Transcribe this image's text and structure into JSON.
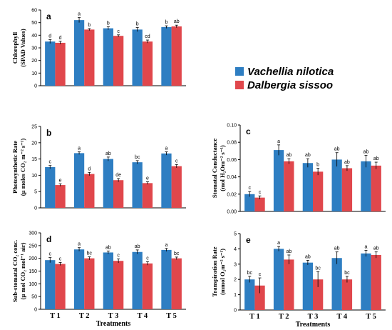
{
  "legend": {
    "items": [
      {
        "label": "Vachellia nilotica",
        "color": "#2e7ec2"
      },
      {
        "label": "Dalbergia sissoo",
        "color": "#e0474c"
      }
    ]
  },
  "chart_data": [
    {
      "type": "bar",
      "panel": "a",
      "categories": [
        "T 1",
        "T 2",
        "T 3",
        "T 4",
        "T 5"
      ],
      "ylabel_lines": [
        "Chlorophyll",
        "(SPAD Values)"
      ],
      "xlabel": "",
      "ylim": [
        0,
        60
      ],
      "yticks": [
        0,
        10,
        20,
        30,
        40,
        50,
        60
      ],
      "series": [
        {
          "name": "Vachellia nilotica",
          "values": [
            35.0,
            52.0,
            45.5,
            44.5,
            46.5
          ],
          "errors": [
            1.5,
            2.0,
            1.2,
            1.6,
            1.0
          ],
          "letters": [
            "d",
            "a",
            "b",
            "b",
            "b"
          ]
        },
        {
          "name": "Dalbergia sissoo",
          "values": [
            34.0,
            44.5,
            39.5,
            35.0,
            47.0
          ],
          "errors": [
            1.2,
            0.8,
            0.8,
            1.2,
            1.0
          ],
          "letters": [
            "d",
            "b",
            "c",
            "cd",
            "ab"
          ]
        }
      ]
    },
    {
      "type": "bar",
      "panel": "b",
      "categories": [
        "T 1",
        "T 2",
        "T 3",
        "T 4",
        "T 5"
      ],
      "ylabel_lines": [
        "Photosynthetic Rate",
        "(µ moles CO₂ m⁻² s⁻¹)"
      ],
      "xlabel": "",
      "ylim": [
        0,
        25
      ],
      "yticks": [
        0,
        5,
        10,
        15,
        20,
        25
      ],
      "series": [
        {
          "name": "Vachellia nilotica",
          "values": [
            12.5,
            16.8,
            15.0,
            14.0,
            16.7
          ],
          "errors": [
            0.5,
            0.4,
            0.6,
            0.5,
            0.5
          ],
          "letters": [
            "c",
            "a",
            "ab",
            "bc",
            "a"
          ]
        },
        {
          "name": "Dalbergia sissoo",
          "values": [
            7.0,
            10.4,
            8.5,
            7.6,
            12.8
          ],
          "errors": [
            0.4,
            0.5,
            0.5,
            0.4,
            0.5
          ],
          "letters": [
            "e",
            "d",
            "de",
            "e",
            "c"
          ]
        }
      ]
    },
    {
      "type": "bar",
      "panel": "c",
      "categories": [
        "T 1",
        "T 2",
        "T 3",
        "T 4",
        "T 5"
      ],
      "ylabel_lines": [
        "Stomatal Conductance",
        "(mol H₂Om⁻² s⁻¹)"
      ],
      "xlabel": "",
      "ylim": [
        0,
        0.1
      ],
      "yticks": [
        0,
        0.02,
        0.04,
        0.06,
        0.08,
        0.1
      ],
      "tick_labels": [
        "0.00",
        "0.02",
        "0.04",
        "0.06",
        "0.08",
        "0.10"
      ],
      "series": [
        {
          "name": "Vachellia nilotica",
          "values": [
            0.02,
            0.071,
            0.056,
            0.06,
            0.058
          ],
          "errors": [
            0.003,
            0.006,
            0.005,
            0.008,
            0.007
          ],
          "letters": [
            "c",
            "a",
            "ab",
            "ab",
            "ab"
          ]
        },
        {
          "name": "Dalbergia sissoo",
          "values": [
            0.016,
            0.058,
            0.046,
            0.05,
            0.053
          ],
          "errors": [
            0.002,
            0.003,
            0.004,
            0.003,
            0.004
          ],
          "letters": [
            "c",
            "ab",
            "b",
            "ab",
            "ab"
          ]
        }
      ]
    },
    {
      "type": "bar",
      "panel": "d",
      "categories": [
        "T 1",
        "T 2",
        "T 3",
        "T 4",
        "T 5"
      ],
      "ylabel_lines": [
        "Sub-stomatal CO₂ conc.",
        "(µ mol CO₂ mol⁻¹ air)"
      ],
      "xlabel": "Treatments",
      "ylim": [
        0,
        300
      ],
      "yticks": [
        0,
        50,
        100,
        150,
        200,
        250,
        300
      ],
      "series": [
        {
          "name": "Vachellia nilotica",
          "values": [
            193,
            235,
            223,
            225,
            233
          ],
          "errors": [
            10,
            7,
            6,
            8,
            6
          ],
          "letters": [
            "c",
            "a",
            "ab",
            "ab",
            "a"
          ]
        },
        {
          "name": "Dalbergia sissoo",
          "values": [
            178,
            200,
            190,
            180,
            200
          ],
          "errors": [
            6,
            6,
            8,
            7,
            5
          ],
          "letters": [
            "c",
            "bc",
            "c",
            "c",
            "bc"
          ]
        }
      ]
    },
    {
      "type": "bar",
      "panel": "e",
      "categories": [
        "T 1",
        "T 2",
        "T 3",
        "T 4",
        "T 5"
      ],
      "ylabel_lines": [
        "Transpiration Rate",
        "(mmol O₂m⁻² s⁻¹)"
      ],
      "xlabel": "Treatments",
      "ylim": [
        0,
        5
      ],
      "yticks": [
        0,
        1,
        2,
        3,
        4,
        5
      ],
      "series": [
        {
          "name": "Vachellia nilotica",
          "values": [
            2.0,
            4.0,
            3.1,
            3.4,
            3.7
          ],
          "errors": [
            0.2,
            0.15,
            0.15,
            0.4,
            0.2
          ],
          "letters": [
            "bc",
            "a",
            "ab",
            "ab",
            "a"
          ]
        },
        {
          "name": "Dalbergia sissoo",
          "values": [
            1.6,
            3.3,
            2.0,
            2.0,
            3.6
          ],
          "errors": [
            0.5,
            0.3,
            0.5,
            0.2,
            0.2
          ],
          "letters": [
            "c",
            "ab",
            "bc",
            "bc",
            "ab"
          ]
        }
      ]
    }
  ]
}
